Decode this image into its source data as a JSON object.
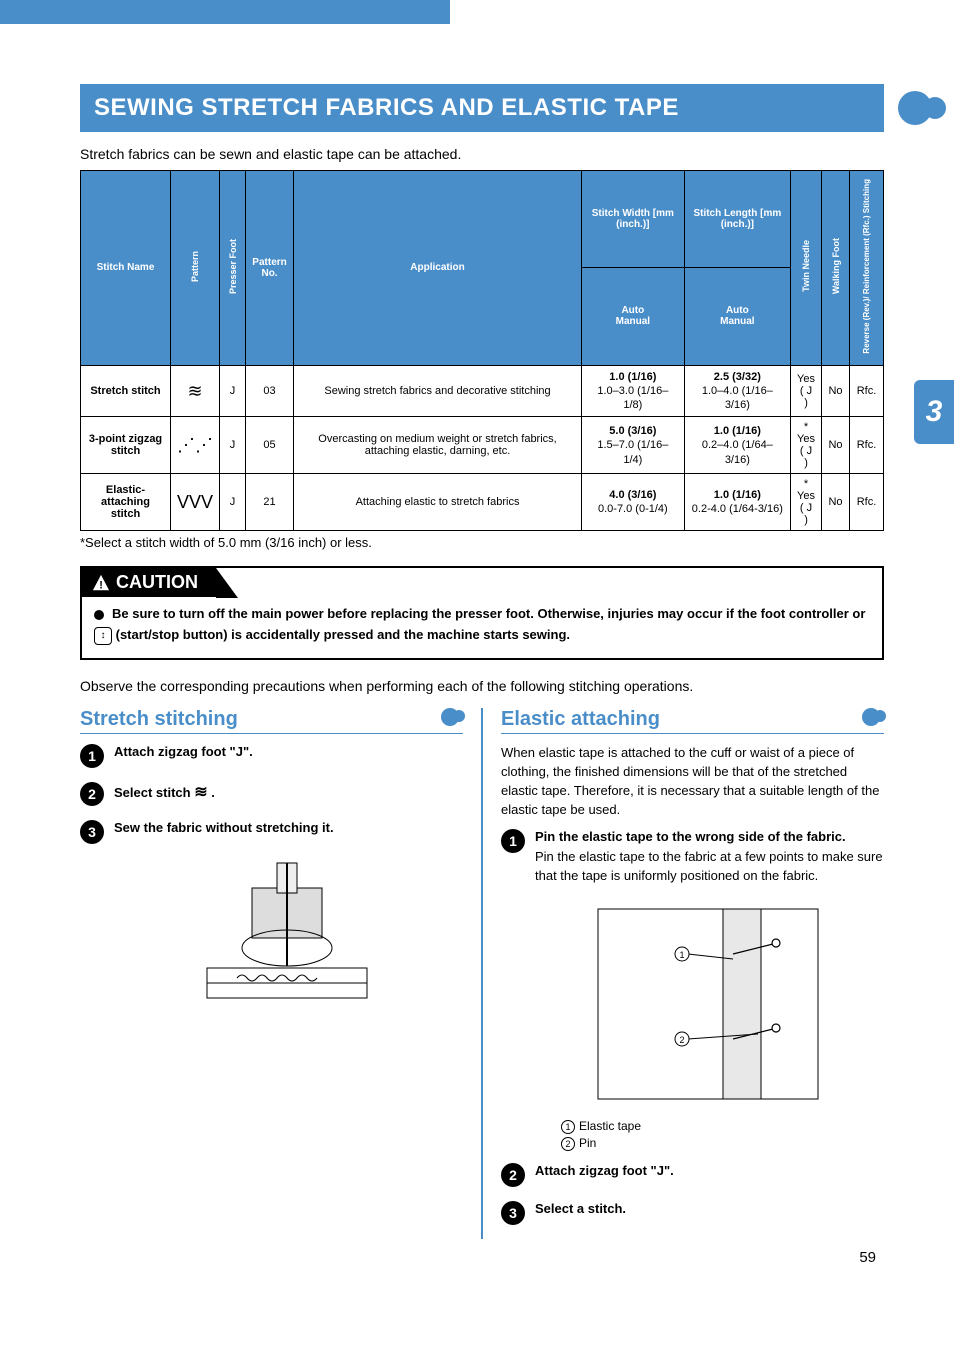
{
  "chapter_number": "3",
  "page_number": "59",
  "section_title": "SEWING STRETCH FABRICS AND ELASTIC TAPE",
  "intro": "Stretch fabrics can be sewn and elastic tape can be attached.",
  "table": {
    "headers": {
      "stitch_name": "Stitch Name",
      "pattern": "Pattern",
      "presser_foot": "Presser Foot",
      "pattern_no": "Pattern No.",
      "application": "Application",
      "stitch_width": "Stitch Width [mm (inch.)]",
      "stitch_length": "Stitch Length [mm (inch.)]",
      "auto_manual": "Auto Manual",
      "twin_needle": "Twin Needle",
      "walking_foot": "Walking Foot",
      "reverse": "Reverse (Rev.)/ Reinforcement (Rfc.) Stitching"
    },
    "rows": [
      {
        "name": "Stretch stitch",
        "pattern_sym": "≋",
        "foot": "J",
        "no": "03",
        "app": "Sewing stretch fabrics and decorative stitching",
        "width_auto": "1.0 (1/16)",
        "width_manual": "1.0–3.0 (1/16–1/8)",
        "length_auto": "2.5 (3/32)",
        "length_manual": "1.0–4.0 (1/16–3/16)",
        "twin": "Yes ( J )",
        "walking": "No",
        "rev": "Rfc."
      },
      {
        "name": "3-point zigzag stitch",
        "pattern_sym": "⋰⋰",
        "foot": "J",
        "no": "05",
        "app": "Overcasting on medium weight or stretch fabrics, attaching elastic, darning, etc.",
        "width_auto": "5.0 (3/16)",
        "width_manual": "1.5–7.0 (1/16–1/4)",
        "length_auto": "1.0 (1/16)",
        "length_manual": "0.2–4.0 (1/64–3/16)",
        "twin": "* Yes ( J )",
        "walking": "No",
        "rev": "Rfc."
      },
      {
        "name": "Elastic-attaching stitch",
        "pattern_sym": "VVV",
        "foot": "J",
        "no": "21",
        "app": "Attaching elastic to stretch fabrics",
        "width_auto": "4.0 (3/16)",
        "width_manual": "0.0-7.0 (0-1/4)",
        "length_auto": "1.0 (1/16)",
        "length_manual": "0.2-4.0 (1/64-3/16)",
        "twin": "* Yes ( J )",
        "walking": "No",
        "rev": "Rfc."
      }
    ]
  },
  "footnote": "*Select a stitch width of 5.0 mm (3/16 inch) or less.",
  "caution_label": "CAUTION",
  "caution_text_1": "Be sure to turn off the main power before replacing the presser foot. Otherwise, injuries may occur if the foot controller or ",
  "caution_text_2": " (start/stop button) is accidentally pressed and the machine starts sewing.",
  "observe": "Observe the corresponding precautions when performing each of the following stitching operations.",
  "left": {
    "title": "Stretch stitching",
    "step1": "Attach zigzag foot \"J\".",
    "step2_a": "Select stitch ",
    "step2_b": " .",
    "step3": "Sew the fabric without stretching it."
  },
  "right": {
    "title": "Elastic attaching",
    "intro": "When elastic tape is attached to the cuff or waist of a piece of clothing, the finished dimensions will be that of the stretched elastic tape. Therefore, it is necessary that a suitable length of the elastic tape be used.",
    "step1_title": "Pin the elastic tape to the wrong side of the fabric.",
    "step1_detail": "Pin the elastic tape to the fabric at a few points to make sure that the tape is uniformly positioned on the fabric.",
    "legend1": "Elastic tape",
    "legend2": "Pin",
    "step2": "Attach zigzag foot \"J\".",
    "step3": "Select a stitch."
  },
  "colors": {
    "accent": "#4a8ec9",
    "text": "#000000",
    "bg": "#ffffff"
  }
}
